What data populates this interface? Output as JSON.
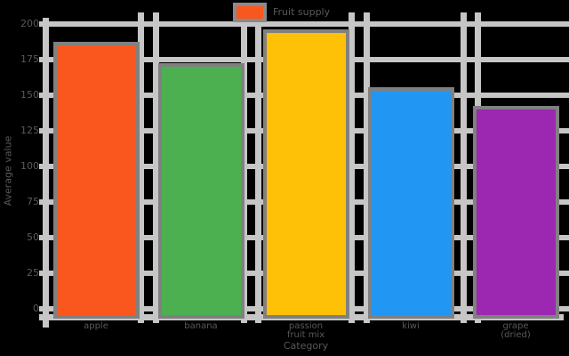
{
  "chart_data": {
    "type": "bar",
    "title": "",
    "categories": [
      "apple",
      "banana",
      "passion\nfruit mix",
      "kiwi",
      "grape\n(dried)"
    ],
    "values": [
      185,
      170,
      194,
      153,
      140
    ],
    "bar_colors": [
      "#fa571e",
      "#4caf50",
      "#ffc107",
      "#2196f3",
      "#9c27b0"
    ],
    "bar_edge_color": "#808080",
    "xlabel": "Category",
    "ylabel": "Average value",
    "yticks": [
      0,
      25,
      50,
      75,
      100,
      125,
      150,
      175,
      200
    ],
    "ylim": [
      0,
      200
    ],
    "grid": "both",
    "grid_color": "#c6c6c6",
    "tick_text_color": "#595959",
    "background_color": "#000000",
    "legend": {
      "label": "Fruit supply",
      "swatch_color": "#fa571e",
      "swatch_border_color": "#8a8a8a",
      "position": "top-center"
    }
  }
}
